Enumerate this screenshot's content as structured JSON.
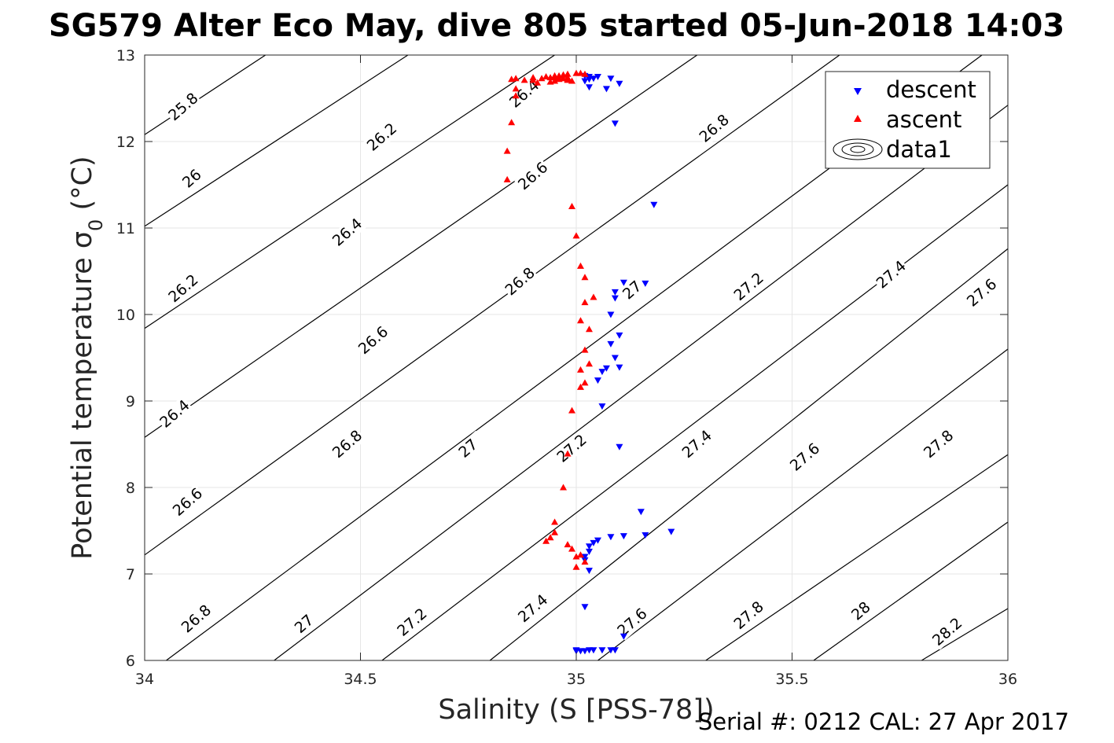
{
  "chart_data": {
    "type": "scatter",
    "title": "SG579 Alter Eco May, dive 805 started 05-Jun-2018 14:03",
    "xlabel": "Salinity (S [PSS-78])",
    "ylabel": "Potential temperature σ",
    "ylabel_sub": "0",
    "ylabel_unit": " (°C)",
    "footnote": "Serial #: 0212  CAL: 27 Apr 2017",
    "xlim": [
      34,
      36
    ],
    "ylim": [
      6,
      13
    ],
    "xticks": [
      "34",
      "34.5",
      "35",
      "35.5",
      "36"
    ],
    "yticks": [
      "6",
      "7",
      "8",
      "9",
      "10",
      "11",
      "12",
      "13"
    ],
    "grid": true,
    "legend": {
      "placement": "top-right",
      "entries": [
        "descent",
        "ascent",
        "data1"
      ]
    },
    "contour_levels": [
      {
        "level": "25.8",
        "x": [
          34,
          34.28
        ],
        "y": [
          12.08,
          13
        ]
      },
      {
        "level": "26",
        "x": [
          34,
          34.61
        ],
        "y": [
          11.02,
          13
        ]
      },
      {
        "level": "26.2",
        "x": [
          34,
          34.95
        ],
        "y": [
          9.84,
          13
        ]
      },
      {
        "level": "26.4",
        "x": [
          34,
          35.28
        ],
        "y": [
          8.58,
          13
        ]
      },
      {
        "level": "26.6",
        "x": [
          34,
          35.61
        ],
        "y": [
          7.22,
          13
        ]
      },
      {
        "level": "26.8",
        "x": [
          34.05,
          35.94
        ],
        "y": [
          6,
          13
        ]
      },
      {
        "level": "27",
        "x": [
          34.3,
          36
        ],
        "y": [
          6,
          12.42
        ]
      },
      {
        "level": "27.2",
        "x": [
          34.55,
          36
        ],
        "y": [
          6,
          11.5
        ]
      },
      {
        "level": "27.4",
        "x": [
          34.8,
          36
        ],
        "y": [
          6,
          10.76
        ]
      },
      {
        "level": "27.6",
        "x": [
          35.05,
          36
        ],
        "y": [
          6,
          9.6
        ]
      },
      {
        "level": "27.8",
        "x": [
          35.3,
          36
        ],
        "y": [
          6,
          8.38
        ]
      },
      {
        "level": "28",
        "x": [
          35.55,
          36
        ],
        "y": [
          6,
          7.6
        ]
      },
      {
        "level": "28.2",
        "x": [
          35.8,
          36
        ],
        "y": [
          6,
          6.6
        ]
      }
    ],
    "contour_labels": [
      {
        "text": "25.8",
        "x": 34.09,
        "y": 12.4
      },
      {
        "text": "26.2",
        "x": 34.55,
        "y": 12.05
      },
      {
        "text": "26.4",
        "x": 34.88,
        "y": 12.55
      },
      {
        "text": "26",
        "x": 34.11,
        "y": 11.57
      },
      {
        "text": "26.6",
        "x": 34.9,
        "y": 11.6
      },
      {
        "text": "26.8",
        "x": 35.32,
        "y": 12.15
      },
      {
        "text": "27",
        "x": 35.9,
        "y": 12.1
      },
      {
        "text": "26.4",
        "x": 34.47,
        "y": 10.95
      },
      {
        "text": "26.2",
        "x": 34.09,
        "y": 10.3
      },
      {
        "text": "26.8",
        "x": 34.87,
        "y": 10.38
      },
      {
        "text": "27",
        "x": 35.13,
        "y": 10.28
      },
      {
        "text": "27.2",
        "x": 35.4,
        "y": 10.32
      },
      {
        "text": "27.4",
        "x": 35.73,
        "y": 10.46
      },
      {
        "text": "27.6",
        "x": 35.94,
        "y": 10.25
      },
      {
        "text": "26.6",
        "x": 34.53,
        "y": 9.7
      },
      {
        "text": "26.4",
        "x": 34.07,
        "y": 8.85
      },
      {
        "text": "26.8",
        "x": 34.47,
        "y": 8.5
      },
      {
        "text": "27",
        "x": 34.75,
        "y": 8.45
      },
      {
        "text": "27.2",
        "x": 34.99,
        "y": 8.45
      },
      {
        "text": "27.4",
        "x": 35.28,
        "y": 8.5
      },
      {
        "text": "27.6",
        "x": 35.53,
        "y": 8.35
      },
      {
        "text": "27.8",
        "x": 35.84,
        "y": 8.5
      },
      {
        "text": "26.6",
        "x": 34.1,
        "y": 7.83
      },
      {
        "text": "26.8",
        "x": 34.12,
        "y": 6.48
      },
      {
        "text": "27",
        "x": 34.37,
        "y": 6.42
      },
      {
        "text": "27.2",
        "x": 34.62,
        "y": 6.44
      },
      {
        "text": "27.4",
        "x": 34.9,
        "y": 6.6
      },
      {
        "text": "27.6",
        "x": 35.13,
        "y": 6.44
      },
      {
        "text": "27.8",
        "x": 35.4,
        "y": 6.52
      },
      {
        "text": "28",
        "x": 35.66,
        "y": 6.57
      },
      {
        "text": "28.2",
        "x": 35.86,
        "y": 6.33
      }
    ],
    "series": [
      {
        "name": "descent",
        "marker": "triangle-down",
        "color": "#0000ff",
        "x": [
          35.02,
          35.03,
          35.04,
          35.03,
          35.02,
          35.05,
          35.08,
          35.1,
          35.07,
          35.09,
          35.03,
          35.18,
          35.09,
          35.11,
          35.16,
          35.09,
          35.08,
          35.1,
          35.08,
          35.09,
          35.1,
          35.07,
          35.06,
          35.05,
          35.06,
          35.1,
          35.15,
          35.22,
          35.16,
          35.11,
          35.08,
          35.05,
          35.04,
          35.03,
          35.03,
          35.02,
          35.02,
          35.03,
          35.02,
          35.11,
          35.09,
          35.08,
          35.06,
          35.04,
          35.03,
          35.02,
          35.01,
          35.0,
          35.0
        ],
        "y": [
          12.76,
          12.75,
          12.73,
          12.72,
          12.7,
          12.75,
          12.73,
          12.67,
          12.61,
          12.21,
          12.63,
          11.27,
          10.26,
          10.37,
          10.36,
          10.19,
          10.0,
          9.76,
          9.66,
          9.5,
          9.39,
          9.38,
          9.34,
          9.24,
          8.94,
          8.47,
          7.72,
          7.49,
          7.45,
          7.44,
          7.43,
          7.39,
          7.36,
          7.32,
          7.26,
          7.2,
          7.16,
          7.04,
          6.62,
          6.28,
          6.12,
          6.12,
          6.12,
          6.12,
          6.12,
          6.11,
          6.11,
          6.11,
          6.12
        ]
      },
      {
        "name": "ascent",
        "marker": "triangle-up",
        "color": "#ff0000",
        "x": [
          34.85,
          34.86,
          34.9,
          34.93,
          34.97,
          34.98,
          35.0,
          35.01,
          35.02,
          34.95,
          34.94,
          34.96,
          34.98,
          34.98,
          34.99,
          34.98,
          34.98,
          34.97,
          34.97,
          34.96,
          34.95,
          34.96,
          34.95,
          34.94,
          34.92,
          34.91,
          34.9,
          34.88,
          34.86,
          34.86,
          34.85,
          34.84,
          34.84,
          34.99,
          35.0,
          35.01,
          35.02,
          35.04,
          35.02,
          35.01,
          35.03,
          35.02,
          35.03,
          35.01,
          35.02,
          35.01,
          34.99,
          34.98,
          34.97,
          34.95,
          34.95,
          34.94,
          34.93,
          34.98,
          34.99,
          35.01,
          35.0,
          35.02,
          35.0
        ],
        "y": [
          12.72,
          12.73,
          12.74,
          12.75,
          12.77,
          12.78,
          12.79,
          12.79,
          12.78,
          12.76,
          12.74,
          12.73,
          12.72,
          12.71,
          12.7,
          12.74,
          12.72,
          12.73,
          12.77,
          12.76,
          12.74,
          12.72,
          12.7,
          12.69,
          12.73,
          12.68,
          12.71,
          12.71,
          12.61,
          12.53,
          12.22,
          11.89,
          11.56,
          11.25,
          10.91,
          10.56,
          10.43,
          10.2,
          10.14,
          9.93,
          9.83,
          9.59,
          9.43,
          9.36,
          9.21,
          9.16,
          8.89,
          8.39,
          8.0,
          7.6,
          7.48,
          7.42,
          7.38,
          7.34,
          7.29,
          7.22,
          7.2,
          7.14,
          7.08
        ]
      }
    ]
  }
}
